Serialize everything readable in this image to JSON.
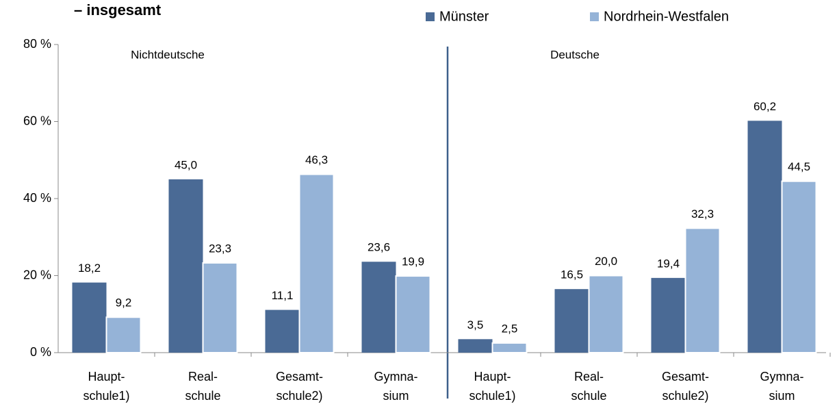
{
  "chart_data": {
    "type": "bar",
    "title": "– insgesamt",
    "annotations": [
      "Nichtdeutsche",
      "Deutsche"
    ],
    "categories": [
      [
        "Haupt-",
        "schule1)"
      ],
      [
        "Real-",
        "schule"
      ],
      [
        "Gesamt-",
        "schule2)"
      ],
      [
        "Gymna-",
        "sium"
      ],
      [
        "Haupt-",
        "schule1)"
      ],
      [
        "Real-",
        "schule"
      ],
      [
        "Gesamt-",
        "schule2)"
      ],
      [
        "Gymna-",
        "sium"
      ]
    ],
    "series": [
      {
        "name": "Münster",
        "color": "#4a6a95",
        "values": [
          18.2,
          45.0,
          11.1,
          23.6,
          3.5,
          16.5,
          19.4,
          60.2
        ],
        "value_labels": [
          "18,2",
          "45,0",
          "11,1",
          "23,6",
          "3,5",
          "16,5",
          "19,4",
          "60,2"
        ]
      },
      {
        "name": "Nordrhein-Westfalen",
        "color": "#95b3d7",
        "values": [
          9.2,
          23.3,
          46.3,
          19.9,
          2.5,
          20.0,
          32.3,
          44.5
        ],
        "value_labels": [
          "9,2",
          "23,3",
          "46,3",
          "19,9",
          "2,5",
          "20,0",
          "32,3",
          "44,5"
        ]
      }
    ],
    "ylim": [
      0,
      80
    ],
    "yticks": [
      {
        "value": 0,
        "label": "0 %"
      },
      {
        "value": 20,
        "label": "20 %"
      },
      {
        "value": 40,
        "label": "40 %"
      },
      {
        "value": 60,
        "label": "60 %"
      },
      {
        "value": 80,
        "label": "80 %"
      }
    ],
    "legend": "top"
  }
}
